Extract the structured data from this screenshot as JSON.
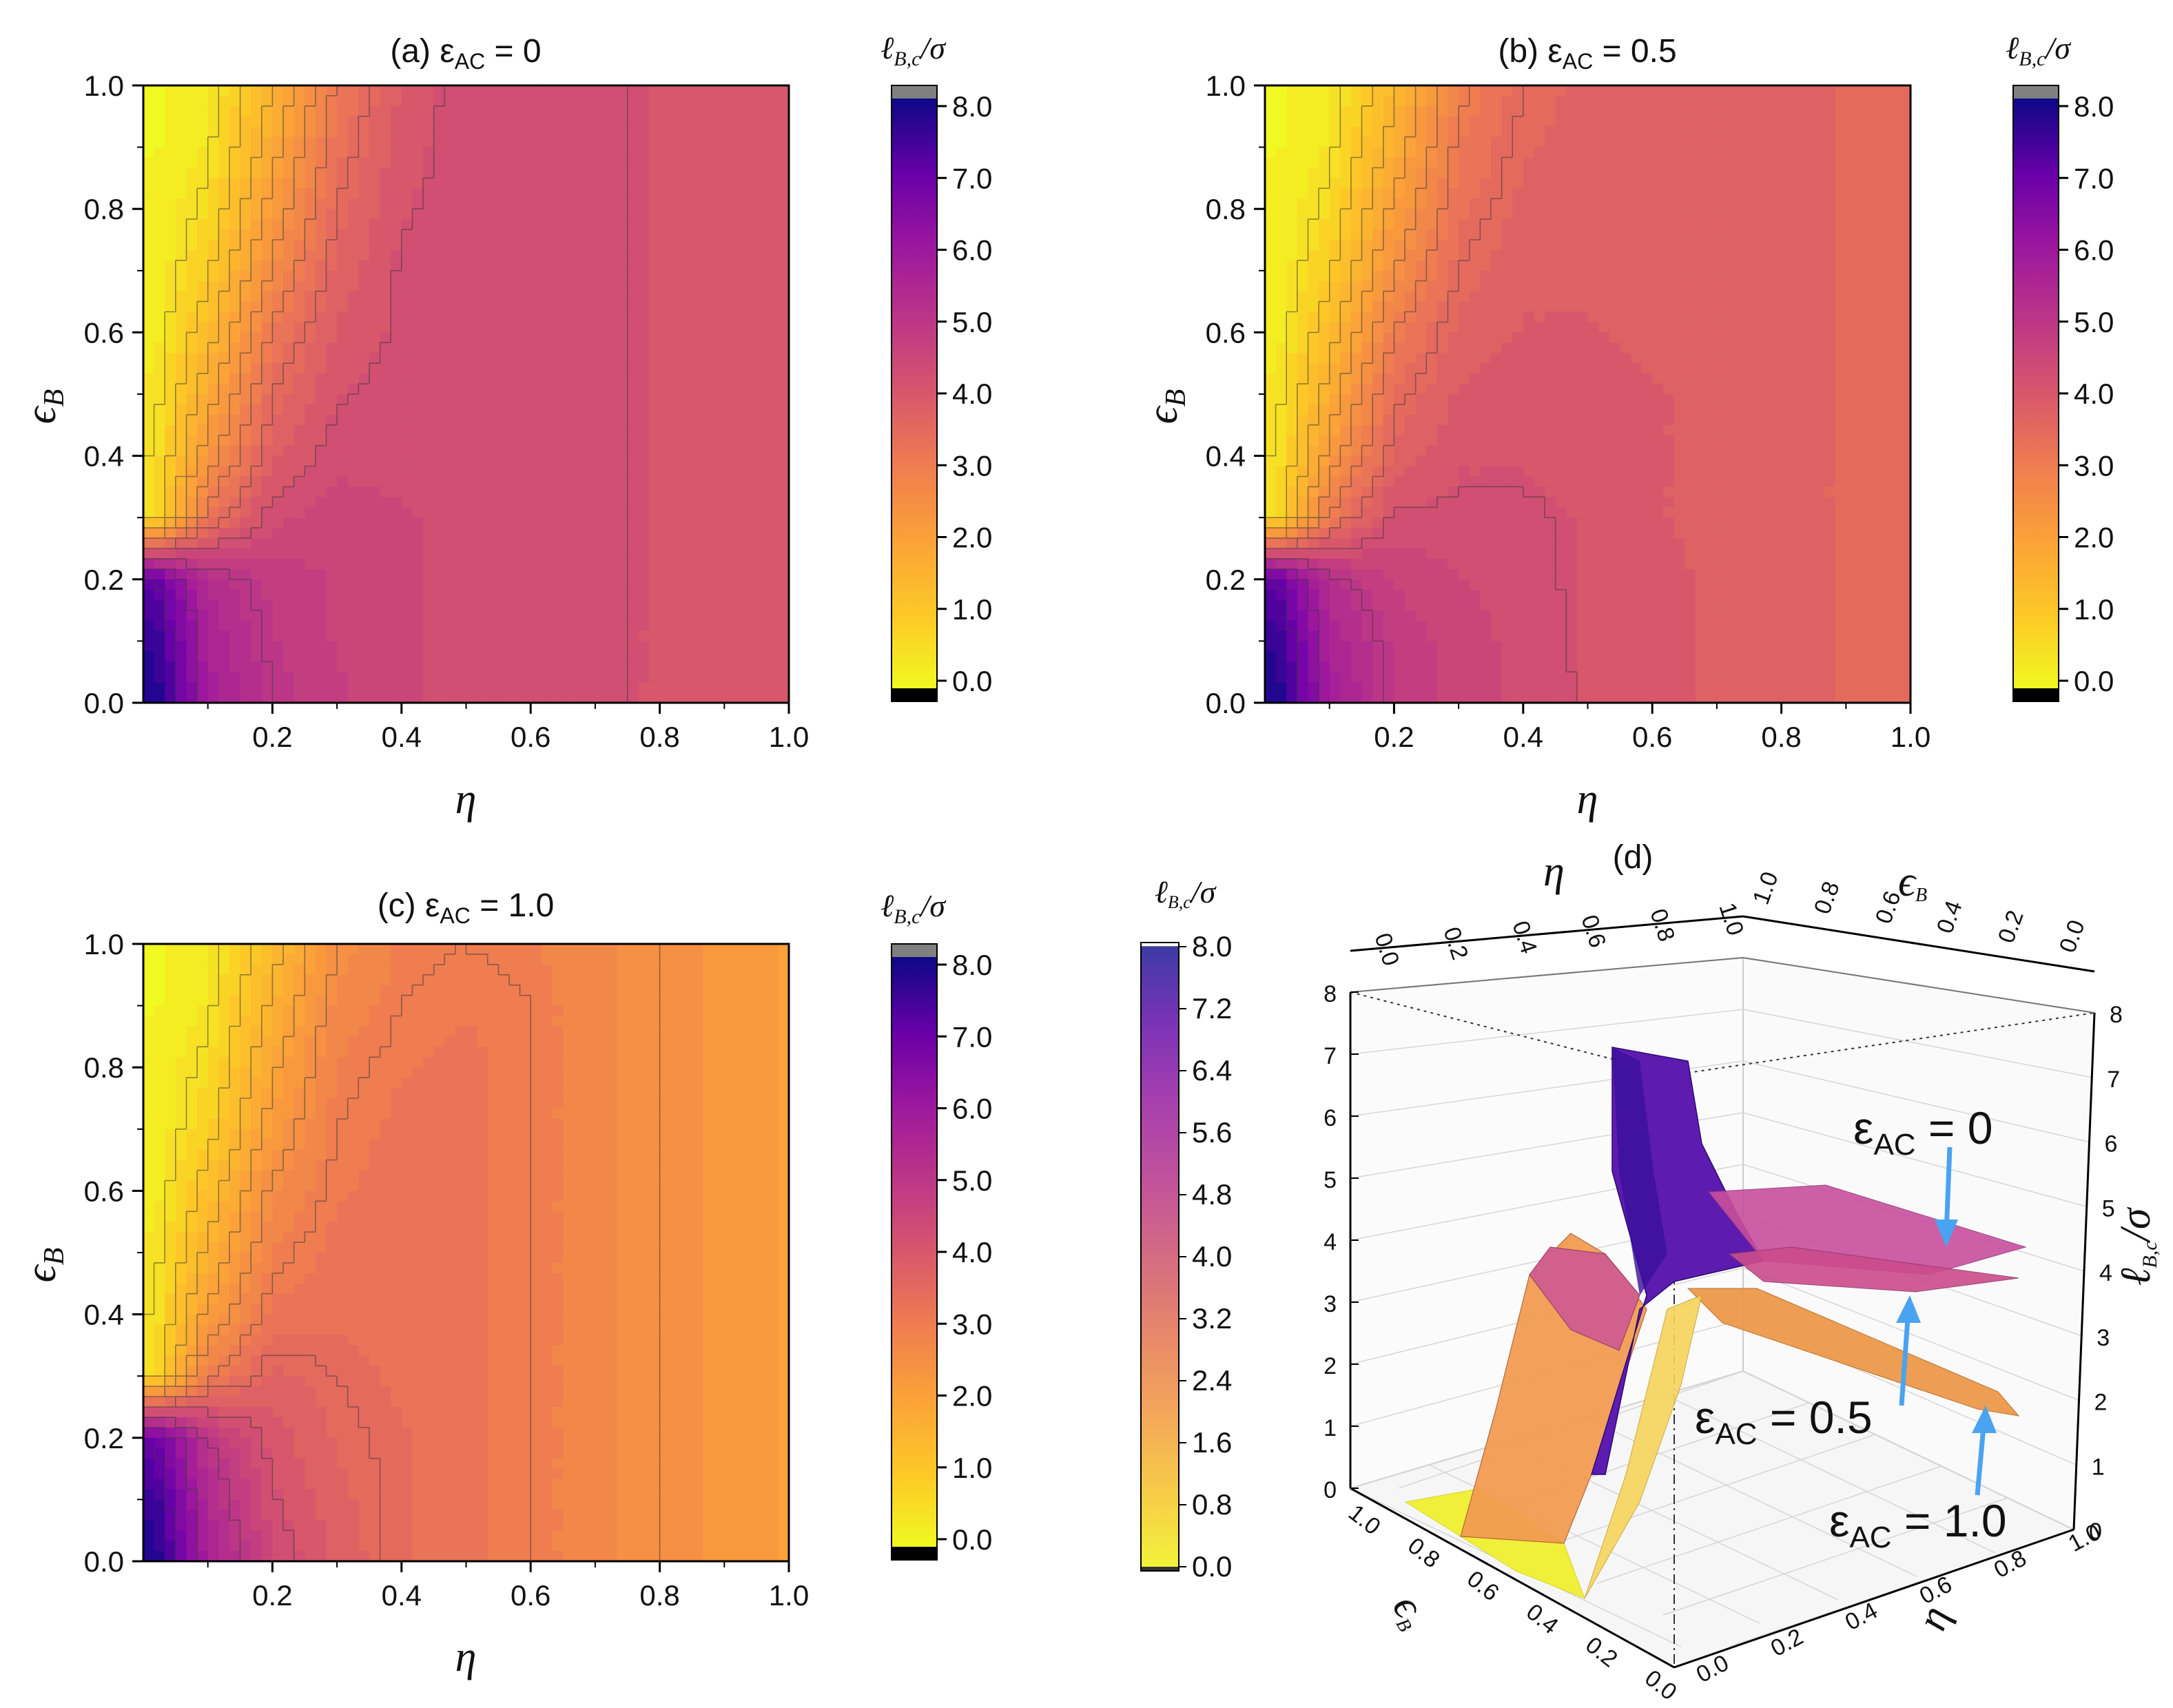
{
  "colors": {
    "yellow": "#f0f921",
    "orange": "#f89441",
    "salmon": "#e16462",
    "magenta": "#cc4778",
    "purple": "#9c179e",
    "violet": "#7301a8",
    "indigo": "#2a0593",
    "over": "#808080",
    "under": "#000000",
    "arrow": "#4aa3f0"
  },
  "chart_data": [
    {
      "type": "heatmap",
      "title": "(a) εAC = 0",
      "xlabel": "η",
      "ylabel": "εB",
      "xlim": [
        0.0,
        1.0
      ],
      "ylim": [
        0.0,
        1.0
      ],
      "x_ticks": [
        "0.2",
        "0.4",
        "0.6",
        "0.8",
        "1.0"
      ],
      "y_ticks": [
        "0.0",
        "0.2",
        "0.4",
        "0.6",
        "0.8",
        "1.0"
      ],
      "colorbar_title": "ℓB,c/σ",
      "colorbar_ticks": [
        "0.0",
        "1.0",
        "2.0",
        "3.0",
        "4.0",
        "5.0",
        "6.0",
        "7.0",
        "8.0"
      ],
      "colorbar_range": [
        0,
        8
      ],
      "z_grid": {
        "eta": [
          0.02,
          0.1,
          0.2,
          0.3,
          0.4,
          0.5,
          0.6,
          0.7,
          0.8,
          0.9,
          1.0
        ],
        "epsB": [
          0.0,
          0.1,
          0.2,
          0.3,
          0.4,
          0.5,
          0.6,
          0.7,
          0.8,
          0.9,
          1.0
        ],
        "z": [
          [
            7.8,
            5.8,
            5.0,
            4.7,
            4.4,
            4.3,
            4.2,
            4.2,
            4.1,
            4.0,
            4.0
          ],
          [
            7.6,
            5.6,
            4.9,
            4.6,
            4.4,
            4.3,
            4.2,
            4.2,
            4.1,
            4.0,
            4.0
          ],
          [
            7.0,
            5.3,
            4.8,
            4.6,
            4.4,
            4.3,
            4.2,
            4.2,
            4.1,
            4.0,
            4.0
          ],
          [
            0.6,
            3.2,
            4.3,
            4.5,
            4.4,
            4.3,
            4.2,
            4.2,
            4.1,
            4.0,
            4.0
          ],
          [
            0.5,
            2.3,
            3.8,
            4.3,
            4.3,
            4.3,
            4.2,
            4.2,
            4.1,
            4.0,
            4.0
          ],
          [
            0.4,
            1.8,
            3.5,
            4.1,
            4.3,
            4.3,
            4.2,
            4.2,
            4.1,
            4.0,
            4.0
          ],
          [
            0.3,
            1.3,
            3.1,
            3.9,
            4.2,
            4.3,
            4.2,
            4.2,
            4.1,
            4.0,
            4.0
          ],
          [
            0.2,
            0.9,
            2.6,
            3.7,
            4.2,
            4.3,
            4.2,
            4.2,
            4.1,
            4.0,
            4.0
          ],
          [
            0.2,
            0.6,
            2.2,
            3.5,
            4.1,
            4.3,
            4.2,
            4.2,
            4.1,
            4.0,
            4.0
          ],
          [
            0.1,
            0.4,
            1.8,
            3.3,
            4.0,
            4.3,
            4.2,
            4.2,
            4.1,
            4.0,
            4.0
          ],
          [
            0.1,
            0.3,
            1.5,
            3.1,
            3.9,
            4.3,
            4.2,
            4.2,
            4.1,
            4.0,
            4.0
          ]
        ]
      }
    },
    {
      "type": "heatmap",
      "title": "(b) εAC = 0.5",
      "xlabel": "η",
      "ylabel": "εB",
      "xlim": [
        0.0,
        1.0
      ],
      "ylim": [
        0.0,
        1.0
      ],
      "x_ticks": [
        "0.2",
        "0.4",
        "0.6",
        "0.8",
        "1.0"
      ],
      "y_ticks": [
        "0.0",
        "0.2",
        "0.4",
        "0.6",
        "0.8",
        "1.0"
      ],
      "colorbar_title": "ℓB,c/σ",
      "colorbar_ticks": [
        "0.0",
        "1.0",
        "2.0",
        "3.0",
        "4.0",
        "5.0",
        "6.0",
        "7.0",
        "8.0"
      ],
      "colorbar_range": [
        0,
        8
      ],
      "z_grid": {
        "eta": [
          0.02,
          0.1,
          0.2,
          0.3,
          0.4,
          0.5,
          0.6,
          0.7,
          0.8,
          0.9,
          1.0
        ],
        "epsB": [
          0.0,
          0.1,
          0.2,
          0.3,
          0.4,
          0.5,
          0.6,
          0.7,
          0.8,
          0.9,
          1.0
        ],
        "z": [
          [
            7.8,
            5.8,
            4.9,
            4.5,
            4.3,
            4.1,
            4.0,
            3.8,
            3.7,
            3.6,
            3.6
          ],
          [
            7.6,
            5.6,
            4.8,
            4.5,
            4.3,
            4.1,
            4.0,
            3.8,
            3.7,
            3.6,
            3.6
          ],
          [
            7.0,
            5.2,
            4.6,
            4.4,
            4.2,
            4.1,
            4.0,
            3.8,
            3.7,
            3.6,
            3.6
          ],
          [
            0.6,
            3.1,
            4.2,
            4.2,
            4.2,
            4.1,
            3.9,
            3.8,
            3.7,
            3.6,
            3.6
          ],
          [
            0.5,
            2.2,
            3.7,
            4.1,
            4.1,
            4.0,
            3.9,
            3.8,
            3.7,
            3.6,
            3.6
          ],
          [
            0.4,
            1.7,
            3.4,
            3.9,
            4.1,
            4.0,
            3.9,
            3.8,
            3.7,
            3.6,
            3.6
          ],
          [
            0.3,
            1.3,
            3.0,
            3.7,
            3.9,
            3.9,
            3.8,
            3.8,
            3.7,
            3.6,
            3.6
          ],
          [
            0.2,
            0.9,
            2.5,
            3.5,
            3.8,
            3.8,
            3.8,
            3.7,
            3.7,
            3.6,
            3.6
          ],
          [
            0.2,
            0.6,
            2.1,
            3.3,
            3.7,
            3.8,
            3.7,
            3.7,
            3.7,
            3.6,
            3.6
          ],
          [
            0.1,
            0.4,
            1.7,
            3.1,
            3.6,
            3.7,
            3.7,
            3.7,
            3.7,
            3.6,
            3.6
          ],
          [
            0.1,
            0.3,
            1.4,
            2.9,
            3.5,
            3.7,
            3.7,
            3.7,
            3.7,
            3.6,
            3.6
          ]
        ]
      }
    },
    {
      "type": "heatmap",
      "title": "(c) εAC = 1.0",
      "xlabel": "η",
      "ylabel": "εB",
      "xlim": [
        0.0,
        1.0
      ],
      "ylim": [
        0.0,
        1.0
      ],
      "x_ticks": [
        "0.2",
        "0.4",
        "0.6",
        "0.8",
        "1.0"
      ],
      "y_ticks": [
        "0.0",
        "0.2",
        "0.4",
        "0.6",
        "0.8",
        "1.0"
      ],
      "colorbar_title": "ℓB,c/σ",
      "colorbar_ticks": [
        "0.0",
        "1.0",
        "2.0",
        "3.0",
        "4.0",
        "5.0",
        "6.0",
        "7.0",
        "8.0"
      ],
      "colorbar_range": [
        0,
        8
      ],
      "z_grid": {
        "eta": [
          0.02,
          0.1,
          0.2,
          0.3,
          0.4,
          0.5,
          0.6,
          0.7,
          0.8,
          0.9,
          1.0
        ],
        "epsB": [
          0.0,
          0.1,
          0.2,
          0.3,
          0.4,
          0.5,
          0.6,
          0.7,
          0.8,
          0.9,
          1.0
        ],
        "z": [
          [
            7.8,
            5.7,
            4.4,
            3.8,
            3.4,
            3.2,
            3.0,
            2.7,
            2.5,
            2.3,
            2.1
          ],
          [
            7.5,
            5.4,
            4.2,
            3.7,
            3.4,
            3.2,
            3.0,
            2.7,
            2.5,
            2.3,
            2.1
          ],
          [
            6.9,
            5.0,
            4.0,
            3.6,
            3.4,
            3.2,
            3.0,
            2.7,
            2.5,
            2.3,
            2.1
          ],
          [
            0.6,
            3.0,
            3.7,
            3.5,
            3.3,
            3.2,
            3.0,
            2.7,
            2.5,
            2.3,
            2.1
          ],
          [
            0.5,
            2.1,
            3.2,
            3.3,
            3.3,
            3.2,
            3.0,
            2.7,
            2.5,
            2.3,
            2.1
          ],
          [
            0.4,
            1.6,
            2.9,
            3.2,
            3.3,
            3.2,
            3.0,
            2.7,
            2.5,
            2.3,
            2.1
          ],
          [
            0.3,
            1.2,
            2.6,
            3.1,
            3.2,
            3.2,
            3.0,
            2.7,
            2.5,
            2.3,
            2.1
          ],
          [
            0.2,
            0.8,
            2.2,
            3.0,
            3.2,
            3.2,
            3.0,
            2.7,
            2.5,
            2.3,
            2.1
          ],
          [
            0.2,
            0.6,
            1.9,
            2.9,
            3.1,
            3.2,
            3.0,
            2.7,
            2.5,
            2.3,
            2.1
          ],
          [
            0.1,
            0.4,
            1.6,
            2.7,
            3.0,
            3.1,
            3.0,
            2.7,
            2.5,
            2.3,
            2.1
          ],
          [
            0.1,
            0.3,
            1.3,
            2.5,
            2.9,
            3.0,
            2.9,
            2.7,
            2.5,
            2.3,
            2.1
          ]
        ]
      }
    },
    {
      "type": "surface3d",
      "title": "(d)",
      "x_title_top": "η",
      "y_title_top": "εB",
      "z_title": "ℓB,c/σ",
      "eta_ticks": [
        "0.0",
        "0.2",
        "0.4",
        "0.6",
        "0.8",
        "1.0"
      ],
      "epsB_ticks": [
        "1.0",
        "0.8",
        "0.6",
        "0.4",
        "0.2",
        "0.0"
      ],
      "z_ticks": [
        "0",
        "1",
        "2",
        "3",
        "4",
        "5",
        "6",
        "7",
        "8"
      ],
      "colorbar_ticks": [
        "0.0",
        "0.8",
        "1.6",
        "2.4",
        "3.2",
        "4.0",
        "4.8",
        "5.6",
        "6.4",
        "7.2",
        "8.0"
      ],
      "colorbar_range": [
        0,
        8
      ],
      "series": [
        {
          "name": "εAC = 0",
          "plateau": 4.1
        },
        {
          "name": "εAC = 0.5",
          "plateau": 3.6
        },
        {
          "name": "εAC = 1.0",
          "plateau": 2.1
        }
      ],
      "annotations": [
        {
          "base": "ε",
          "sub": "AC",
          "value": " = 0"
        },
        {
          "base": "ε",
          "sub": "AC",
          "value": " = 0.5"
        },
        {
          "base": "ε",
          "sub": "AC",
          "value": " = 1.0"
        }
      ]
    }
  ],
  "labels": {
    "a_title_prefix": "(a) ",
    "a_title_sub": "AC",
    "a_title_value": " = 0",
    "b_title_prefix": "(b) ",
    "b_title_sub": "AC",
    "b_title_value": " = 0.5",
    "c_title_prefix": "(c) ",
    "c_title_sub": "AC",
    "c_title_value": " = 1.0",
    "eps": "ε",
    "epsB_ylabel_base": "ϵ",
    "epsB_ylabel_sub": "B",
    "eta": "η",
    "cb_title_base": "ℓ",
    "cb_title_sub": "B,c",
    "cb_title_rest": "/σ",
    "d_title": "(d)"
  }
}
